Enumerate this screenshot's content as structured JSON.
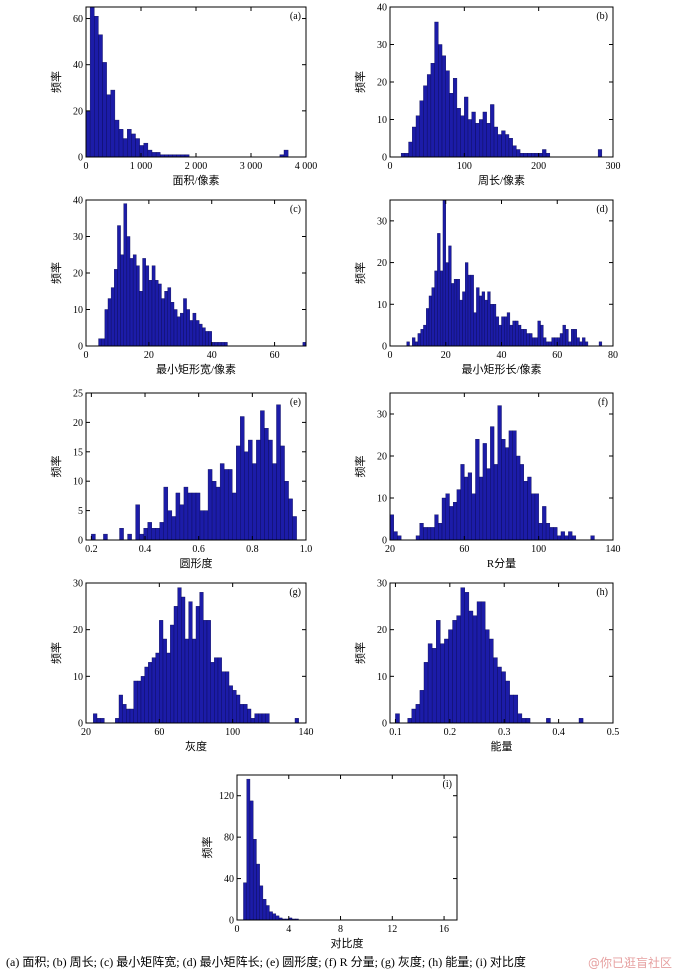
{
  "caption": "(a) 面积; (b) 周长; (c) 最小矩阵宽; (d) 最小矩阵长; (e) 圆形度; (f) R 分量; (g) 灰度; (h) 能量; (i) 对比度",
  "watermark": "@你已逛盲社区",
  "colors": {
    "bar_fill": "#1c1ca8",
    "bar_stroke": "#0a0a55",
    "axis": "#000000"
  },
  "chart_data": [
    {
      "type": "bar",
      "panel_label": "(a)",
      "xlabel": "面积/像素",
      "ylabel": "频率",
      "xlim": [
        0,
        4000
      ],
      "ylim": [
        0,
        65
      ],
      "xticks": [
        0,
        1000,
        2000,
        3000,
        4000
      ],
      "xtick_labels": [
        "0",
        "1 000",
        "2 000",
        "3 000",
        "4 000"
      ],
      "yticks": [
        0,
        20,
        40,
        60
      ],
      "bin_width": 75,
      "x": [
        0,
        75,
        150,
        225,
        300,
        375,
        450,
        525,
        600,
        675,
        750,
        825,
        900,
        975,
        1050,
        1125,
        1200,
        1275,
        1350,
        1425,
        1500,
        1575,
        1650,
        1725,
        1800,
        3525,
        3600
      ],
      "values": [
        20,
        65,
        61,
        53,
        41,
        27,
        29,
        16,
        12,
        8,
        12,
        10,
        8,
        5,
        6,
        3,
        2,
        2,
        1,
        1,
        1,
        1,
        1,
        1,
        1,
        1,
        3
      ]
    },
    {
      "type": "bar",
      "panel_label": "(b)",
      "xlabel": "周长/像素",
      "ylabel": "频率",
      "xlim": [
        0,
        300
      ],
      "ylim": [
        0,
        40
      ],
      "xticks": [
        0,
        100,
        200,
        300
      ],
      "xtick_labels": [
        "0",
        "100",
        "200",
        "300"
      ],
      "yticks": [
        0,
        10,
        20,
        30,
        40
      ],
      "bin_width": 5,
      "x": [
        15,
        20,
        25,
        30,
        35,
        40,
        45,
        50,
        55,
        60,
        65,
        70,
        75,
        80,
        85,
        90,
        95,
        100,
        105,
        110,
        115,
        120,
        125,
        130,
        135,
        140,
        145,
        150,
        155,
        160,
        165,
        170,
        175,
        180,
        185,
        190,
        195,
        200,
        205,
        210,
        280
      ],
      "values": [
        1,
        1,
        4,
        8,
        11,
        15,
        19,
        22,
        25,
        36,
        30,
        27,
        23,
        17,
        21,
        13,
        11,
        16,
        10,
        12,
        9,
        10,
        12,
        9,
        14,
        8,
        6,
        7,
        6,
        5,
        3,
        2,
        1,
        1,
        1,
        1,
        1,
        1,
        2,
        1,
        2
      ]
    },
    {
      "type": "bar",
      "panel_label": "(c)",
      "xlabel": "最小矩形宽/像素",
      "ylabel": "频率",
      "xlim": [
        0,
        70
      ],
      "ylim": [
        0,
        40
      ],
      "xticks": [
        0,
        20,
        40,
        60
      ],
      "xtick_labels": [
        "0",
        "20",
        "40",
        "60"
      ],
      "yticks": [
        0,
        10,
        20,
        30,
        40
      ],
      "bin_width": 1,
      "x": [
        4,
        5,
        6,
        7,
        8,
        9,
        10,
        11,
        12,
        13,
        14,
        15,
        16,
        17,
        18,
        19,
        20,
        21,
        22,
        23,
        24,
        25,
        26,
        27,
        28,
        29,
        30,
        31,
        32,
        33,
        34,
        35,
        36,
        37,
        38,
        39,
        40,
        41,
        42,
        43,
        44,
        69
      ],
      "values": [
        2,
        2,
        10,
        13,
        16,
        21,
        33,
        25,
        39,
        30,
        24,
        25,
        22,
        15,
        24,
        22,
        18,
        22,
        18,
        17,
        13,
        15,
        16,
        12,
        10,
        8,
        9,
        13,
        10,
        7,
        9,
        7,
        6,
        5,
        4,
        4,
        1,
        1,
        1,
        1,
        1,
        1
      ]
    },
    {
      "type": "bar",
      "panel_label": "(d)",
      "xlabel": "最小矩形长/像素",
      "ylabel": "频率",
      "xlim": [
        0,
        80
      ],
      "ylim": [
        0,
        35
      ],
      "xticks": [
        0,
        20,
        40,
        60,
        80
      ],
      "xtick_labels": [
        "0",
        "20",
        "40",
        "60",
        "80"
      ],
      "yticks": [
        0,
        10,
        20,
        30
      ],
      "bin_width": 1,
      "x": [
        6,
        8,
        9,
        10,
        11,
        12,
        13,
        14,
        15,
        16,
        17,
        18,
        19,
        20,
        21,
        22,
        23,
        24,
        25,
        26,
        27,
        28,
        29,
        30,
        31,
        32,
        33,
        34,
        35,
        36,
        37,
        38,
        39,
        40,
        41,
        42,
        43,
        44,
        45,
        46,
        47,
        48,
        49,
        50,
        51,
        52,
        53,
        54,
        55,
        56,
        57,
        58,
        59,
        60,
        61,
        62,
        63,
        64,
        65,
        66,
        67,
        68,
        69,
        70,
        75
      ],
      "values": [
        1,
        2,
        1,
        3,
        4,
        5,
        9,
        12,
        14,
        18,
        27,
        18,
        35,
        20,
        24,
        15,
        16,
        16,
        11,
        13,
        20,
        17,
        17,
        8,
        14,
        12,
        13,
        11,
        13,
        10,
        10,
        7,
        5,
        7,
        7,
        8,
        5,
        6,
        6,
        5,
        4,
        4,
        3,
        3,
        2,
        2,
        6,
        5,
        2,
        1,
        1,
        2,
        2,
        2,
        3,
        5,
        4,
        1,
        4,
        4,
        2,
        1,
        2,
        1,
        1
      ]
    },
    {
      "type": "bar",
      "panel_label": "(e)",
      "xlabel": "圆形度",
      "ylabel": "频率",
      "xlim": [
        0.18,
        1.0
      ],
      "ylim": [
        0,
        25
      ],
      "xticks": [
        0.2,
        0.4,
        0.6,
        0.8,
        1.0
      ],
      "xtick_labels": [
        "0.2",
        "0.4",
        "0.6",
        "0.8",
        "1.0"
      ],
      "yticks": [
        0,
        5,
        10,
        15,
        20,
        25
      ],
      "bin_width": 0.015,
      "x": [
        0.2,
        0.245,
        0.305,
        0.335,
        0.365,
        0.38,
        0.395,
        0.41,
        0.425,
        0.44,
        0.455,
        0.47,
        0.485,
        0.5,
        0.515,
        0.53,
        0.545,
        0.56,
        0.575,
        0.59,
        0.605,
        0.62,
        0.635,
        0.65,
        0.665,
        0.68,
        0.695,
        0.71,
        0.725,
        0.74,
        0.755,
        0.77,
        0.785,
        0.8,
        0.815,
        0.83,
        0.845,
        0.86,
        0.875,
        0.89,
        0.905,
        0.92,
        0.935,
        0.95
      ],
      "values": [
        1,
        1,
        2,
        1,
        6,
        1,
        2,
        3,
        2,
        2,
        3,
        9,
        5,
        4,
        8,
        6,
        9,
        8,
        8,
        8,
        5,
        5,
        12,
        10,
        9,
        13,
        12,
        12,
        8,
        16,
        21,
        15,
        17,
        13,
        17,
        22,
        19,
        17,
        13,
        23,
        16,
        10,
        7,
        4
      ]
    },
    {
      "type": "bar",
      "panel_label": "(f)",
      "xlabel": "R分量",
      "ylabel": "频率",
      "xlim": [
        20,
        140
      ],
      "ylim": [
        0,
        35
      ],
      "xticks": [
        20,
        60,
        100,
        140
      ],
      "xtick_labels": [
        "20",
        "60",
        "100",
        "140"
      ],
      "yticks": [
        0,
        10,
        20,
        30
      ],
      "bin_width": 2,
      "x": [
        20,
        22,
        24,
        34,
        36,
        38,
        40,
        42,
        44,
        46,
        48,
        50,
        52,
        54,
        56,
        58,
        60,
        62,
        64,
        66,
        68,
        70,
        72,
        74,
        76,
        78,
        80,
        82,
        84,
        86,
        88,
        90,
        92,
        94,
        96,
        98,
        100,
        102,
        104,
        106,
        108,
        110,
        112,
        114,
        116,
        118,
        128
      ],
      "values": [
        6,
        2,
        1,
        1,
        4,
        3,
        3,
        3,
        6,
        4,
        10,
        11,
        8,
        9,
        12,
        18,
        15,
        16,
        11,
        24,
        15,
        23,
        17,
        27,
        18,
        32,
        24,
        22,
        26,
        26,
        20,
        18,
        14,
        15,
        11,
        11,
        4,
        8,
        4,
        3,
        3,
        1,
        2,
        1,
        2,
        1,
        1
      ]
    },
    {
      "type": "bar",
      "panel_label": "(g)",
      "xlabel": "灰度",
      "ylabel": "频率",
      "xlim": [
        20,
        140
      ],
      "ylim": [
        0,
        30
      ],
      "xticks": [
        20,
        60,
        100,
        140
      ],
      "xtick_labels": [
        "20",
        "60",
        "100",
        "140"
      ],
      "yticks": [
        0,
        10,
        20,
        30
      ],
      "bin_width": 2,
      "x": [
        24,
        26,
        28,
        36,
        38,
        40,
        42,
        44,
        46,
        48,
        50,
        52,
        54,
        56,
        58,
        60,
        62,
        64,
        66,
        68,
        70,
        72,
        74,
        76,
        78,
        80,
        82,
        84,
        86,
        88,
        90,
        92,
        94,
        96,
        98,
        100,
        102,
        104,
        106,
        108,
        110,
        112,
        114,
        116,
        118,
        134
      ],
      "values": [
        2,
        1,
        1,
        1,
        6,
        4,
        3,
        3,
        9,
        9,
        10,
        12,
        13,
        14,
        15,
        22,
        18,
        15,
        21,
        25,
        29,
        27,
        18,
        26,
        18,
        25,
        28,
        22,
        22,
        13,
        14,
        14,
        11,
        11,
        8,
        7,
        6,
        4,
        4,
        3,
        1,
        2,
        2,
        2,
        2,
        1
      ]
    },
    {
      "type": "bar",
      "panel_label": "(h)",
      "xlabel": "能量",
      "ylabel": "频率",
      "xlim": [
        0.09,
        0.5
      ],
      "ylim": [
        0,
        30
      ],
      "xticks": [
        0.1,
        0.2,
        0.3,
        0.4,
        0.5
      ],
      "xtick_labels": [
        "0.1",
        "0.2",
        "0.3",
        "0.4",
        "0.5"
      ],
      "yticks": [
        0,
        10,
        20,
        30
      ],
      "bin_width": 0.0075,
      "x": [
        0.1,
        0.1225,
        0.13,
        0.1375,
        0.145,
        0.1525,
        0.16,
        0.1675,
        0.175,
        0.1825,
        0.19,
        0.1975,
        0.205,
        0.2125,
        0.22,
        0.2275,
        0.235,
        0.2425,
        0.25,
        0.2575,
        0.265,
        0.2725,
        0.28,
        0.2875,
        0.295,
        0.3025,
        0.31,
        0.3175,
        0.325,
        0.3325,
        0.34,
        0.3775,
        0.4375
      ],
      "values": [
        2,
        1,
        3,
        4,
        7,
        13,
        17,
        16,
        22,
        17,
        18,
        20,
        22,
        23,
        29,
        28,
        24,
        23,
        26,
        26,
        20,
        18,
        14,
        12,
        11,
        9,
        6,
        6,
        2,
        1,
        1,
        1,
        1
      ]
    },
    {
      "type": "bar",
      "panel_label": "(i)",
      "xlabel": "对比度",
      "ylabel": "频率",
      "xlim": [
        0,
        17
      ],
      "ylim": [
        0,
        140
      ],
      "xticks": [
        0,
        4,
        8,
        12,
        16
      ],
      "xtick_labels": [
        "0",
        "4",
        "8",
        "12",
        "16"
      ],
      "yticks": [
        0,
        40,
        80,
        120
      ],
      "bin_width": 0.25,
      "x": [
        0.5,
        0.75,
        1.0,
        1.25,
        1.5,
        1.75,
        2.0,
        2.25,
        2.5,
        2.75,
        3.0,
        3.25,
        3.5,
        3.75,
        4.0,
        4.25,
        4.5
      ],
      "values": [
        36,
        136,
        115,
        78,
        54,
        33,
        20,
        14,
        8,
        6,
        4,
        2,
        1,
        1,
        2,
        1,
        1
      ]
    }
  ]
}
